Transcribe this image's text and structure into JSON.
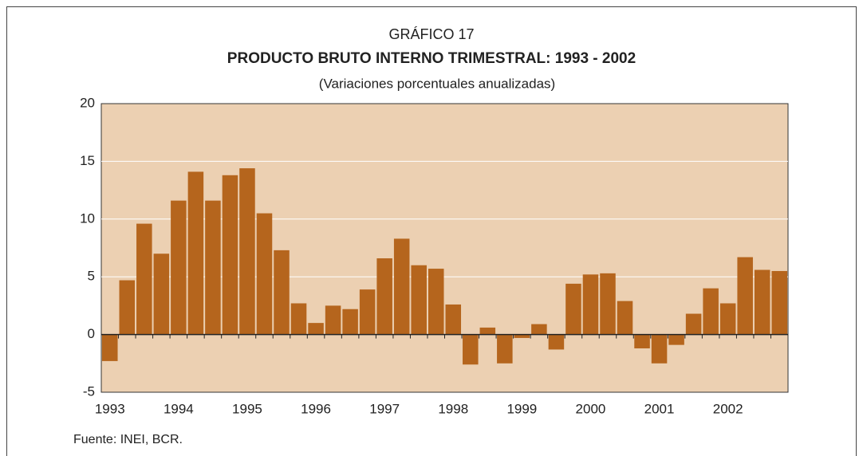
{
  "chart_data": {
    "type": "bar",
    "pretitle": "GRÁFICO 17",
    "title": "PRODUCTO BRUTO INTERNO TRIMESTRAL: 1993 - 2002",
    "subtitle": "(Variaciones porcentuales anualizadas)",
    "source": "Fuente: INEI, BCR.",
    "categories": [
      "1993",
      null,
      null,
      null,
      "1994",
      null,
      null,
      null,
      "1995",
      null,
      null,
      null,
      "1996",
      null,
      null,
      null,
      "1997",
      null,
      null,
      null,
      "1998",
      null,
      null,
      null,
      "1999",
      null,
      null,
      null,
      "2000",
      null,
      null,
      null,
      "2001",
      null,
      null,
      null,
      "2002",
      null,
      null,
      null
    ],
    "values": [
      -2.3,
      4.7,
      9.6,
      7.0,
      11.6,
      14.1,
      11.6,
      13.8,
      14.4,
      10.5,
      7.3,
      2.7,
      1.0,
      2.5,
      2.2,
      3.9,
      6.6,
      8.3,
      6.0,
      5.7,
      2.6,
      -2.6,
      0.6,
      -2.5,
      -0.3,
      0.9,
      -1.3,
      4.4,
      5.2,
      5.3,
      2.9,
      -1.2,
      -2.5,
      -0.9,
      1.8,
      4.0,
      2.7,
      6.7,
      5.6,
      5.5
    ],
    "color": "#b5651d",
    "ylim": [
      -5,
      20
    ],
    "yticks": [
      -5,
      0,
      5,
      10,
      15,
      20
    ],
    "grid": true
  }
}
